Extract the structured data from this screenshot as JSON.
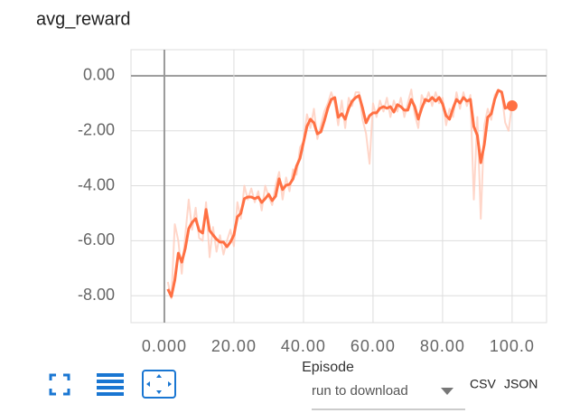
{
  "chart_data": {
    "type": "line",
    "title": "avg_reward",
    "x_label": "Episode",
    "x": [
      1,
      2,
      3,
      4,
      5,
      6,
      7,
      8,
      9,
      10,
      11,
      12,
      13,
      14,
      15,
      16,
      17,
      18,
      19,
      20,
      21,
      22,
      23,
      24,
      25,
      26,
      27,
      28,
      29,
      30,
      31,
      32,
      33,
      34,
      35,
      36,
      37,
      38,
      39,
      40,
      41,
      42,
      43,
      44,
      45,
      46,
      47,
      48,
      49,
      50,
      51,
      52,
      53,
      54,
      55,
      56,
      57,
      58,
      59,
      60,
      61,
      62,
      63,
      64,
      65,
      66,
      67,
      68,
      69,
      70,
      71,
      72,
      73,
      74,
      75,
      76,
      77,
      78,
      79,
      80,
      81,
      82,
      83,
      84,
      85,
      86,
      87,
      88,
      89,
      90,
      91,
      92,
      93,
      94,
      95,
      96,
      97,
      98,
      99,
      100
    ],
    "series": [
      {
        "color": "#ff7043",
        "values": [
          -7.76,
          -8.03,
          -7.43,
          -6.45,
          -6.78,
          -6.28,
          -5.56,
          -5.33,
          -5.2,
          -5.63,
          -5.72,
          -4.86,
          -5.63,
          -5.79,
          -5.95,
          -6.05,
          -6.05,
          -6.22,
          -6.05,
          -5.79,
          -5.13,
          -5.0,
          -4.47,
          -4.41,
          -4.41,
          -4.47,
          -4.41,
          -4.61,
          -4.47,
          -4.31,
          -4.54,
          -4.38,
          -3.75,
          -4.14,
          -3.98,
          -3.95,
          -3.75,
          -3.29,
          -3.0,
          -2.43,
          -1.84,
          -1.58,
          -1.71,
          -2.11,
          -2.04,
          -1.64,
          -1.18,
          -0.86,
          -0.79,
          -1.51,
          -1.38,
          -1.58,
          -1.18,
          -0.92,
          -0.79,
          -0.72,
          -1.18,
          -1.71,
          -1.45,
          -1.35,
          -1.35,
          -1.18,
          -1.12,
          -1.18,
          -1.12,
          -1.32,
          -1.05,
          -1.12,
          -1.25,
          -1.25,
          -0.86,
          -1.12,
          -1.58,
          -1.18,
          -0.86,
          -0.92,
          -0.79,
          -0.92,
          -0.79,
          -1.02,
          -1.45,
          -1.58,
          -1.18,
          -0.86,
          -0.99,
          -0.79,
          -0.92,
          -0.86,
          -1.84,
          -2.17,
          -3.16,
          -2.5,
          -1.51,
          -1.38,
          -0.86,
          -0.53,
          -0.59,
          -1.18,
          -1.12,
          -1.09
        ]
      },
      {
        "color": "#ffccbc",
        "values": [
          -7.5,
          -8.1,
          -5.4,
          -6.0,
          -7.2,
          -5.8,
          -4.5,
          -5.6,
          -4.8,
          -5.9,
          -6.0,
          -4.6,
          -6.6,
          -5.5,
          -6.4,
          -5.8,
          -6.5,
          -6.0,
          -5.6,
          -6.2,
          -4.6,
          -5.2,
          -4.0,
          -4.5,
          -4.1,
          -4.6,
          -4.2,
          -4.9,
          -4.0,
          -4.4,
          -4.7,
          -4.0,
          -3.5,
          -4.5,
          -3.7,
          -4.2,
          -3.4,
          -3.6,
          -2.6,
          -2.4,
          -1.4,
          -1.9,
          -1.2,
          -2.3,
          -1.8,
          -1.3,
          -1.0,
          -0.6,
          -1.0,
          -1.8,
          -0.9,
          -1.9,
          -0.8,
          -1.1,
          -0.6,
          -0.6,
          -1.6,
          -2.1,
          -3.2,
          -1.0,
          -1.5,
          -0.9,
          -1.3,
          -0.8,
          -1.5,
          -0.9,
          -1.3,
          -0.8,
          -1.5,
          -1.0,
          -0.5,
          -1.4,
          -1.9,
          -0.7,
          -1.0,
          -0.6,
          -1.1,
          -0.6,
          -1.0,
          -0.8,
          -1.8,
          -1.2,
          -1.5,
          -0.6,
          -1.2,
          -0.6,
          -1.1,
          -0.7,
          -4.5,
          -1.5,
          -5.2,
          -1.8,
          -1.2,
          -1.6,
          -0.7,
          -0.5,
          -0.6,
          -1.7,
          -2.0,
          -1.0
        ]
      }
    ],
    "xlim": [
      -9.6,
      109.9
    ],
    "ylim": [
      -8.98,
      0.95
    ],
    "xticks": [
      {
        "value": 0,
        "label": "0.000"
      },
      {
        "value": 20,
        "label": "20.00"
      },
      {
        "value": 40,
        "label": "40.00"
      },
      {
        "value": 60,
        "label": "60.00"
      },
      {
        "value": 80,
        "label": "80.00"
      },
      {
        "value": 100,
        "label": "100.0"
      }
    ],
    "yticks": [
      {
        "value": 0,
        "label": "0.00"
      },
      {
        "value": -2,
        "label": "-2.00"
      },
      {
        "value": -4,
        "label": "-4.00"
      },
      {
        "value": -6,
        "label": "-6.00"
      },
      {
        "value": -8,
        "label": "-8.00"
      }
    ],
    "grid": true
  },
  "controls": {
    "run_select": "run to download",
    "csv": "CSV",
    "json": "JSON"
  }
}
